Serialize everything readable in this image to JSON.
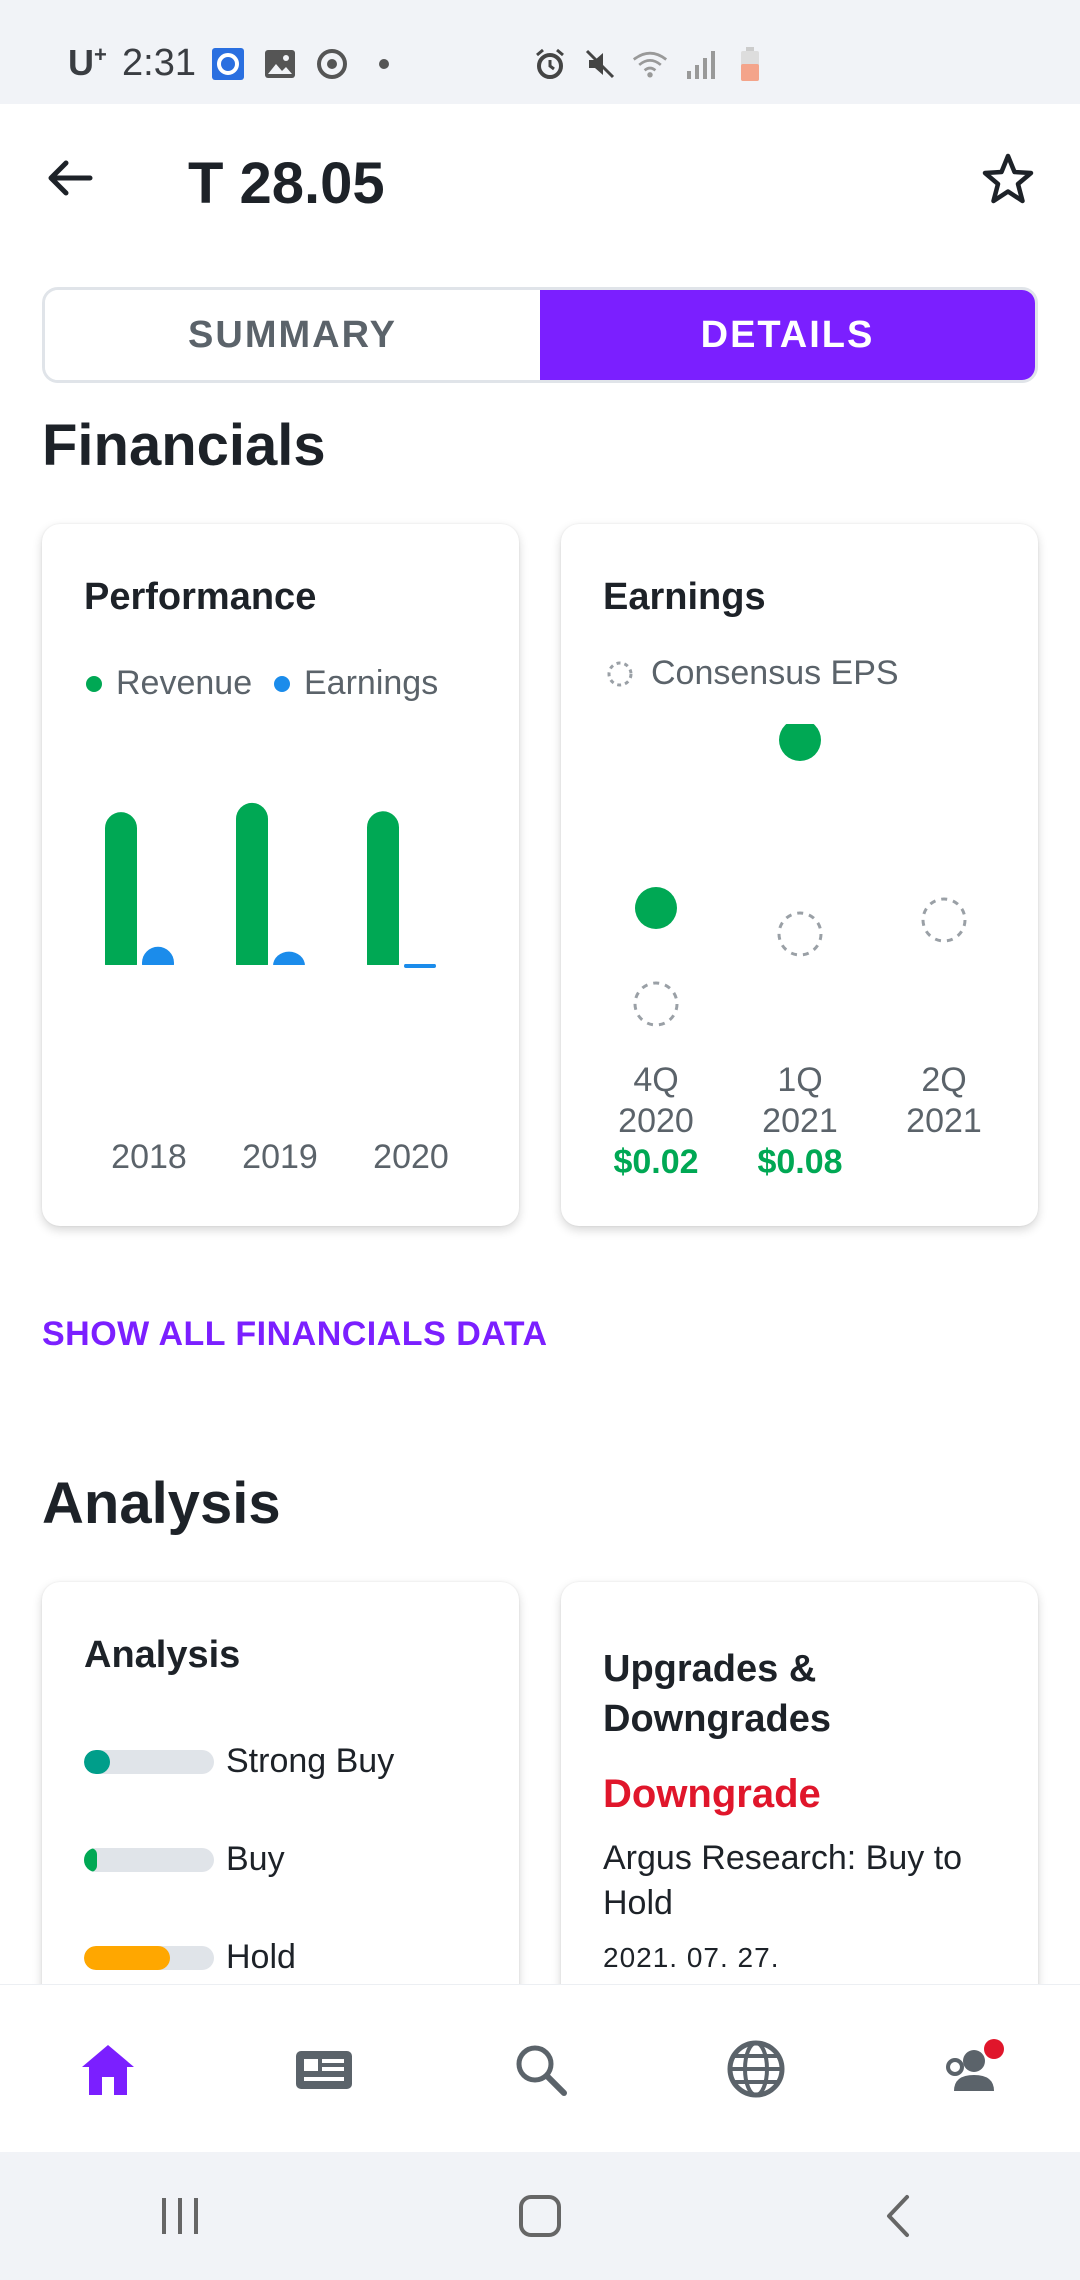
{
  "status_bar": {
    "carrier": "U",
    "carrier_sup": "+",
    "time": "2:31"
  },
  "header": {
    "title": "T 28.05"
  },
  "tabs": [
    {
      "label": "SUMMARY",
      "active": false
    },
    {
      "label": "DETAILS",
      "active": true
    }
  ],
  "financials": {
    "section_title": "Financials",
    "performance": {
      "title": "Performance",
      "legend": [
        {
          "label": "Revenue",
          "color": "#00a854"
        },
        {
          "label": "Earnings",
          "color": "#1b8ceb"
        }
      ]
    },
    "earnings": {
      "title": "Earnings",
      "legend_label": "Consensus EPS",
      "quarters": [
        {
          "quarter": "4Q",
          "year": "2020",
          "actual": "$0.02"
        },
        {
          "quarter": "1Q",
          "year": "2021",
          "actual": "$0.08"
        },
        {
          "quarter": "2Q",
          "year": "2021",
          "actual": ""
        }
      ]
    },
    "show_all": "SHOW ALL FINANCIALS DATA"
  },
  "chart_data": [
    {
      "type": "bar",
      "title": "Performance",
      "categories": [
        "2018",
        "2019",
        "2020"
      ],
      "series": [
        {
          "name": "Revenue",
          "values": [
            170.8,
            181.2,
            171.8
          ]
        },
        {
          "name": "Earnings",
          "values": [
            19.4,
            13.9,
            -5.2
          ]
        }
      ],
      "legend": "top-left",
      "grid": false
    },
    {
      "type": "scatter",
      "title": "Earnings",
      "categories": [
        "4Q 2020",
        "1Q 2021",
        "2Q 2021"
      ],
      "series": [
        {
          "name": "Actual EPS",
          "values": [
            0.02,
            0.08,
            null
          ]
        },
        {
          "name": "Consensus EPS",
          "values": [
            0.0,
            0.025,
            0.03
          ]
        }
      ],
      "legend": "top-left",
      "grid": false
    }
  ],
  "analysis": {
    "section_title": "Analysis",
    "card_title": "Analysis",
    "ratings": [
      {
        "label": "Strong Buy",
        "fraction": 0.2,
        "color": "#009e8a"
      },
      {
        "label": "Buy",
        "fraction": 0.1,
        "color": "#00a854"
      },
      {
        "label": "Hold",
        "fraction": 0.66,
        "color": "#ffa700"
      }
    ]
  },
  "upgrades": {
    "title": "Upgrades & Downgrades",
    "status": "Downgrade",
    "description": "Argus Research: Buy to Hold",
    "date": "2021. 07. 27."
  },
  "bottom_nav": [
    {
      "name": "home",
      "active": true
    },
    {
      "name": "news",
      "active": false
    },
    {
      "name": "search",
      "active": false
    },
    {
      "name": "globe",
      "active": false
    },
    {
      "name": "profile",
      "active": false,
      "badge": true
    }
  ],
  "colors": {
    "accent": "#7b1fff",
    "positive": "#00a854",
    "negative": "#e0162b"
  }
}
